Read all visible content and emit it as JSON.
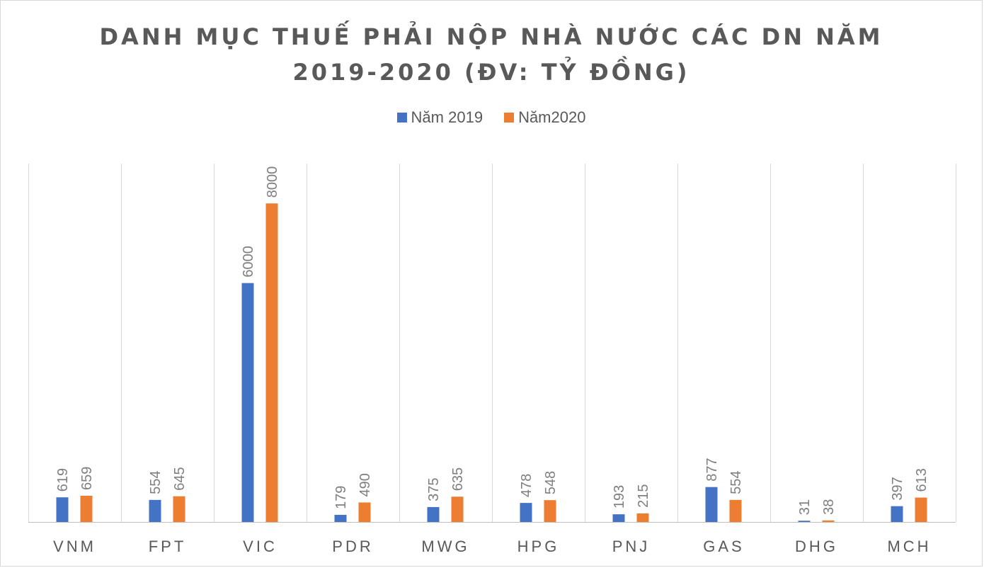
{
  "chart_data": {
    "type": "bar",
    "title": [
      "DANH MỤC THUẾ PHẢI NỘP NHÀ NƯỚC CÁC DN NĂM",
      "2019-2020 (ĐV: TỶ ĐỒNG)"
    ],
    "categories": [
      "VNM",
      "FPT",
      "VIC",
      "PDR",
      "MWG",
      "HPG",
      "PNJ",
      "GAS",
      "DHG",
      "MCH"
    ],
    "series": [
      {
        "name": "Năm 2019",
        "color": "#4472c4",
        "values": [
          619,
          554,
          6000,
          179,
          375,
          478,
          193,
          877,
          31,
          397
        ]
      },
      {
        "name": "Năm2020",
        "color": "#ed7d31",
        "values": [
          659,
          645,
          8000,
          490,
          635,
          548,
          215,
          554,
          38,
          613
        ]
      }
    ],
    "ylim": [
      0,
      9000
    ],
    "legend_position": "top-center",
    "grid": "vertical category separators",
    "data_labels": "rotated, above bars"
  }
}
